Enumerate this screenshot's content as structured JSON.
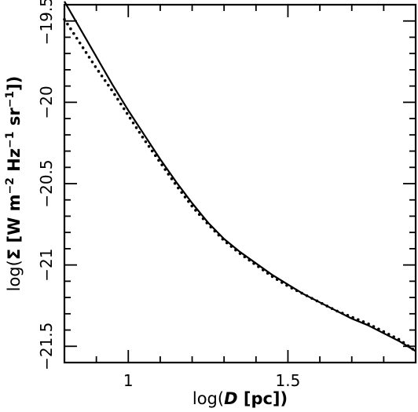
{
  "chart_data": {
    "type": "line",
    "title": "",
    "xlabel": {
      "prefix": "log(",
      "symbol": "D",
      "suffix": " [pc])"
    },
    "ylabel": {
      "prefix": "log(",
      "symbol": "Σ",
      "units": " [W m",
      "e1": "−2",
      "mid1": " Hz",
      "e2": "−1",
      "mid2": " sr",
      "e3": "−1",
      "close": "])"
    },
    "xlim": [
      0.8,
      1.9
    ],
    "ylim": [
      -21.6,
      -19.4
    ],
    "x_ticks": [
      {
        "value": 1,
        "label": "1"
      },
      {
        "value": 1.5,
        "label": "1.5"
      }
    ],
    "y_ticks": [
      {
        "value": -19.5,
        "label": "−19.5"
      },
      {
        "value": -20,
        "label": "−20"
      },
      {
        "value": -20.5,
        "label": "−20.5"
      },
      {
        "value": -21,
        "label": "−21"
      },
      {
        "value": -21.5,
        "label": "−21.5"
      }
    ],
    "x_minor_step": 0.1,
    "y_minor_step": 0.1,
    "grid": false,
    "series": [
      {
        "style": "solid",
        "x": [
          0.8,
          0.85,
          0.9,
          0.95,
          1.0,
          1.05,
          1.1,
          1.15,
          1.2,
          1.25,
          1.3,
          1.35,
          1.4,
          1.45,
          1.5,
          1.55,
          1.6,
          1.65,
          1.7,
          1.75,
          1.8,
          1.85,
          1.9
        ],
        "y": [
          -19.38,
          -19.55,
          -19.72,
          -19.89,
          -20.05,
          -20.2,
          -20.35,
          -20.49,
          -20.62,
          -20.74,
          -20.84,
          -20.92,
          -20.99,
          -21.06,
          -21.12,
          -21.18,
          -21.23,
          -21.28,
          -21.33,
          -21.37,
          -21.42,
          -21.47,
          -21.53
        ]
      },
      {
        "style": "dotted",
        "x": [
          0.8,
          0.85,
          0.9,
          0.95,
          1.0,
          1.05,
          1.1,
          1.15,
          1.2,
          1.25,
          1.3,
          1.35,
          1.4,
          1.45,
          1.5,
          1.55,
          1.6,
          1.65,
          1.7,
          1.75,
          1.8,
          1.85,
          1.9
        ],
        "y": [
          -19.49,
          -19.64,
          -19.79,
          -19.93,
          -20.08,
          -20.23,
          -20.37,
          -20.51,
          -20.64,
          -20.75,
          -20.85,
          -20.93,
          -21.0,
          -21.07,
          -21.13,
          -21.18,
          -21.23,
          -21.28,
          -21.32,
          -21.36,
          -21.41,
          -21.46,
          -21.53
        ]
      }
    ]
  }
}
